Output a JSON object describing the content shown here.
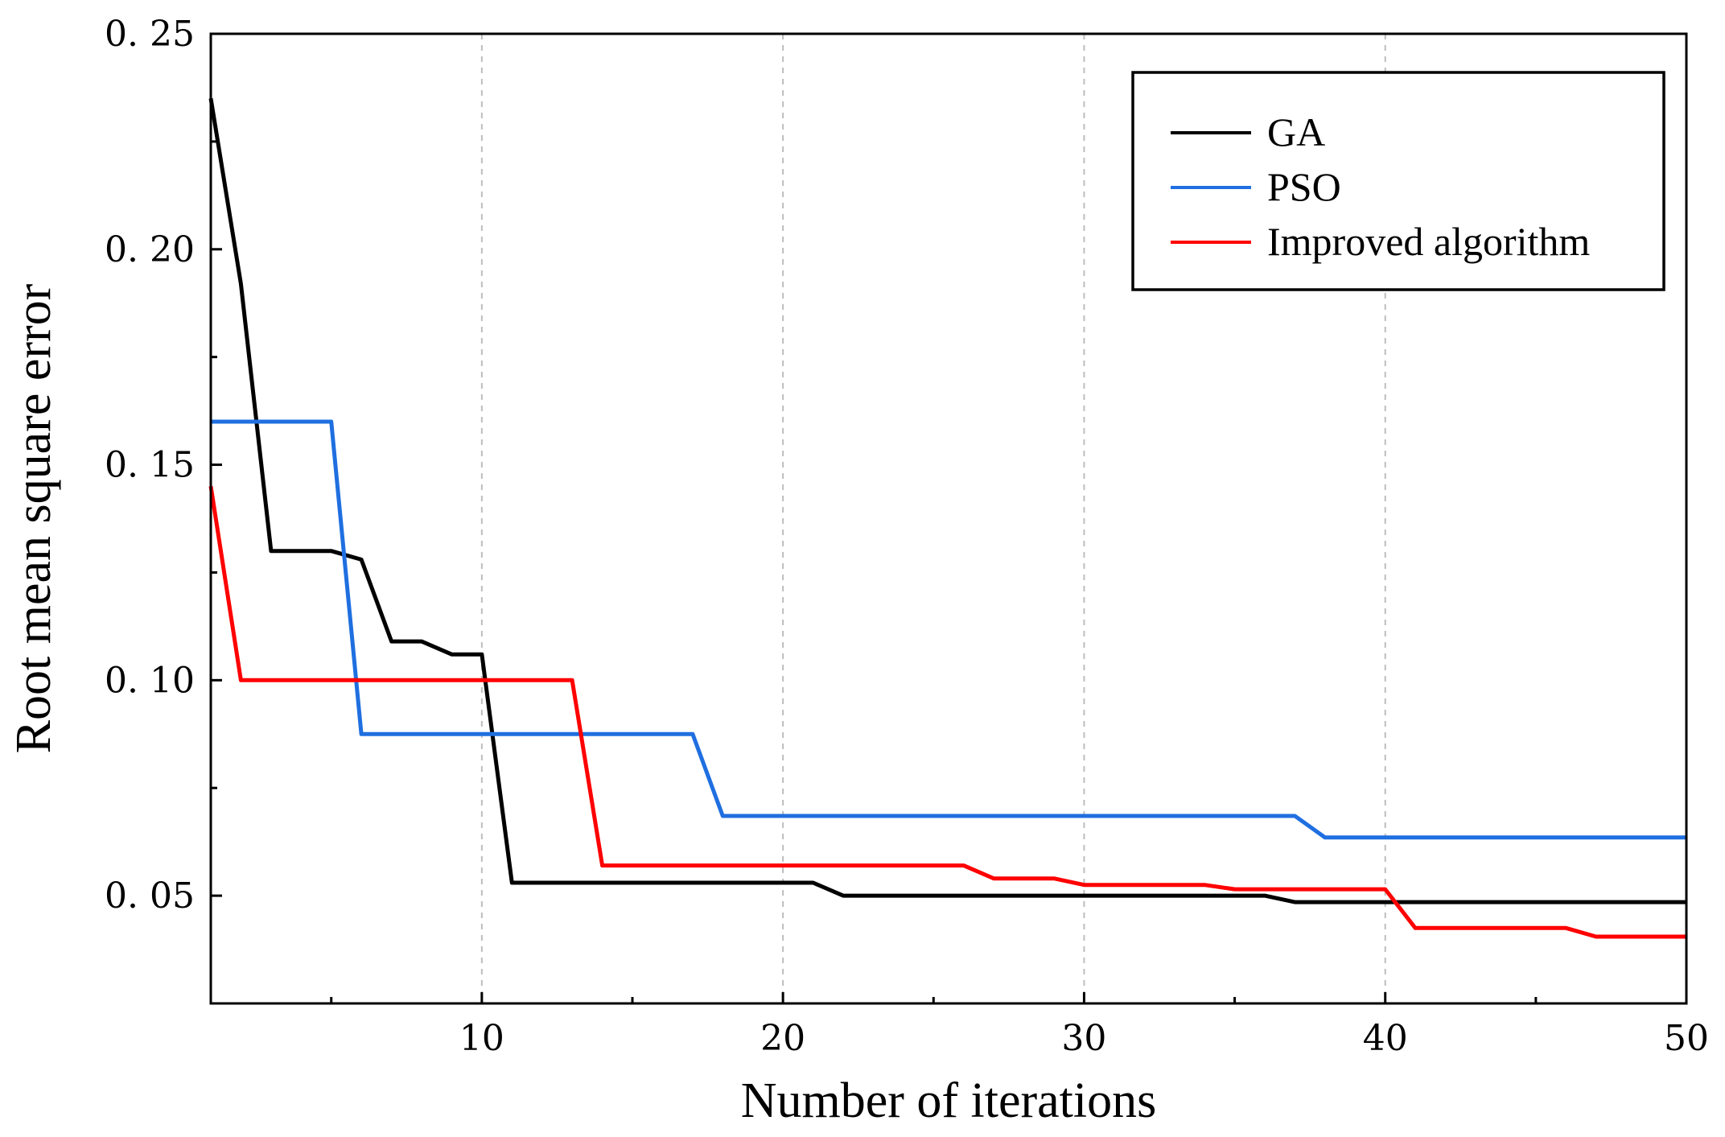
{
  "chart_data": {
    "type": "line",
    "title": "",
    "xlabel": "Number of iterations",
    "ylabel": "Root mean square error",
    "xlim": [
      1,
      50
    ],
    "ylim": [
      0.025,
      0.25
    ],
    "xticks": [
      10,
      20,
      30,
      40,
      50
    ],
    "xtick_labels": [
      "10",
      "20",
      "30",
      "40",
      "50"
    ],
    "yticks": [
      0.05,
      0.1,
      0.15,
      0.2,
      0.25
    ],
    "ytick_labels": [
      "0. 05",
      "0. 10",
      "0. 15",
      "0. 20",
      "0. 25"
    ],
    "grid": "vertical dashed at x ticks",
    "legend_position": "top-right",
    "series": [
      {
        "name": "GA",
        "color": "#000000",
        "x": [
          1,
          2,
          3,
          5,
          6,
          7,
          8,
          9,
          10,
          11,
          21,
          22,
          36,
          37,
          50
        ],
        "y": [
          0.235,
          0.192,
          0.13,
          0.13,
          0.128,
          0.109,
          0.109,
          0.106,
          0.106,
          0.053,
          0.053,
          0.05,
          0.05,
          0.0485,
          0.0485
        ]
      },
      {
        "name": "PSO",
        "color": "#1f6fe0",
        "x": [
          1,
          5,
          6,
          17,
          18,
          37,
          38,
          50
        ],
        "y": [
          0.16,
          0.16,
          0.0875,
          0.0875,
          0.0685,
          0.0685,
          0.0635,
          0.0635
        ]
      },
      {
        "name": "Improved algorithm",
        "color": "#ff0000",
        "x": [
          1,
          2,
          13,
          14,
          26,
          27,
          29,
          30,
          34,
          35,
          40,
          41,
          46,
          47,
          50
        ],
        "y": [
          0.145,
          0.1,
          0.1,
          0.057,
          0.057,
          0.054,
          0.054,
          0.0525,
          0.0525,
          0.0515,
          0.0515,
          0.0425,
          0.0425,
          0.0405,
          0.0405
        ]
      }
    ]
  }
}
